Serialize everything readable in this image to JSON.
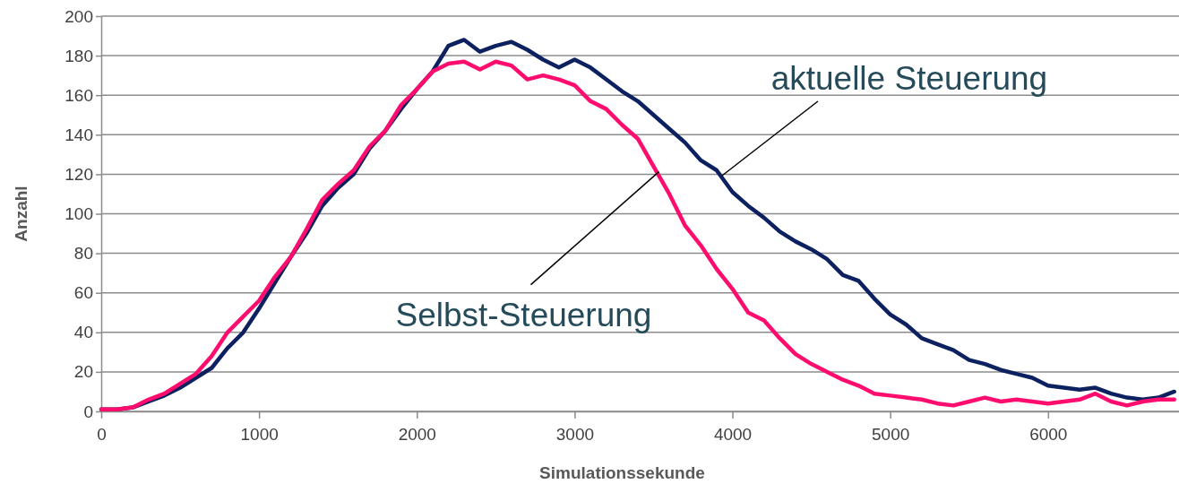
{
  "chart_data": {
    "type": "line",
    "xlabel": "Simulationssekunde",
    "ylabel": "Anzahl",
    "xlim": [
      0,
      6830
    ],
    "ylim": [
      0,
      200
    ],
    "xticks": [
      0,
      1000,
      2000,
      3000,
      4000,
      5000,
      6000
    ],
    "yticks": [
      0,
      20,
      40,
      60,
      80,
      100,
      120,
      140,
      160,
      180,
      200
    ],
    "grid": "y",
    "marker": "none",
    "line_style": "solid",
    "x": [
      0,
      100,
      200,
      300,
      400,
      500,
      600,
      700,
      800,
      900,
      1000,
      1100,
      1200,
      1300,
      1400,
      1500,
      1600,
      1700,
      1800,
      1900,
      2000,
      2100,
      2200,
      2300,
      2400,
      2500,
      2600,
      2700,
      2800,
      2900,
      3000,
      3100,
      3200,
      3300,
      3400,
      3500,
      3600,
      3700,
      3800,
      3900,
      4000,
      4100,
      4200,
      4300,
      4400,
      4500,
      4600,
      4700,
      4800,
      4900,
      5000,
      5100,
      5200,
      5300,
      5400,
      5500,
      5600,
      5700,
      5800,
      5900,
      6000,
      6100,
      6200,
      6300,
      6400,
      6500,
      6600,
      6700,
      6800
    ],
    "series": [
      {
        "name": "aktuelle Steuerung",
        "color": "#0d2161",
        "values": [
          1,
          1,
          2,
          5,
          8,
          12,
          17,
          22,
          32,
          40,
          52,
          65,
          78,
          90,
          104,
          113,
          120,
          133,
          142,
          153,
          163,
          172,
          185,
          188,
          182,
          185,
          187,
          183,
          178,
          174,
          178,
          174,
          168,
          162,
          157,
          150,
          143,
          136,
          127,
          122,
          111,
          104,
          98,
          91,
          86,
          82,
          77,
          69,
          66,
          57,
          49,
          44,
          37,
          34,
          31,
          26,
          24,
          21,
          19,
          17,
          13,
          12,
          11,
          12,
          9,
          7,
          6,
          7,
          10
        ]
      },
      {
        "name": "Selbst-Steuerung",
        "color": "#ff0d6e",
        "values": [
          1,
          1,
          2,
          6,
          9,
          14,
          19,
          28,
          40,
          48,
          56,
          68,
          78,
          92,
          107,
          115,
          122,
          134,
          142,
          155,
          163,
          172,
          176,
          177,
          173,
          177,
          175,
          168,
          170,
          168,
          165,
          157,
          153,
          145,
          138,
          124,
          110,
          94,
          84,
          72,
          62,
          50,
          46,
          37,
          29,
          24,
          20,
          16,
          13,
          9,
          8,
          7,
          6,
          4,
          3,
          5,
          7,
          5,
          6,
          5,
          4,
          5,
          6,
          9,
          5,
          3,
          5,
          6,
          6
        ]
      }
    ]
  }
}
